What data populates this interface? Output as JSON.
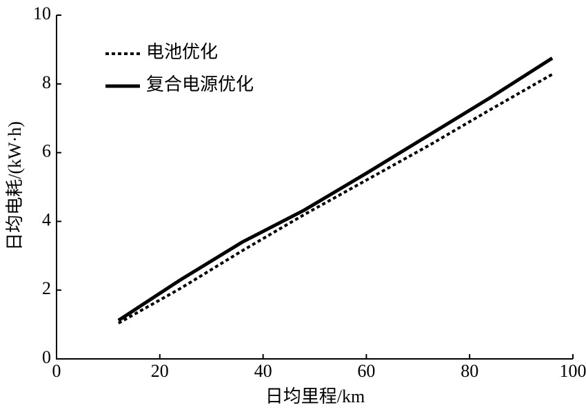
{
  "chart_data": {
    "type": "line",
    "x_label": "日均里程/km",
    "y_label": "日均电耗/(kW·h)",
    "xlim": [
      0,
      100
    ],
    "xticks": [
      0,
      20,
      40,
      60,
      80,
      100
    ],
    "ylim": [
      0,
      10
    ],
    "yticks": [
      0,
      2,
      4,
      6,
      8,
      10
    ],
    "grid": false,
    "legend_position": "upper-left",
    "x": [
      12,
      24,
      36,
      48,
      60,
      72,
      84,
      96
    ],
    "series": [
      {
        "name": "电池优化",
        "color": "#000000",
        "line_style": "dashed",
        "values": [
          1.04,
          2.05,
          3.15,
          4.2,
          5.2,
          6.2,
          7.25,
          8.28
        ]
      },
      {
        "name": "复合电源优化",
        "color": "#000000",
        "line_style": "solid",
        "values": [
          1.12,
          2.3,
          3.4,
          4.33,
          5.4,
          6.5,
          7.6,
          8.75
        ]
      }
    ]
  }
}
